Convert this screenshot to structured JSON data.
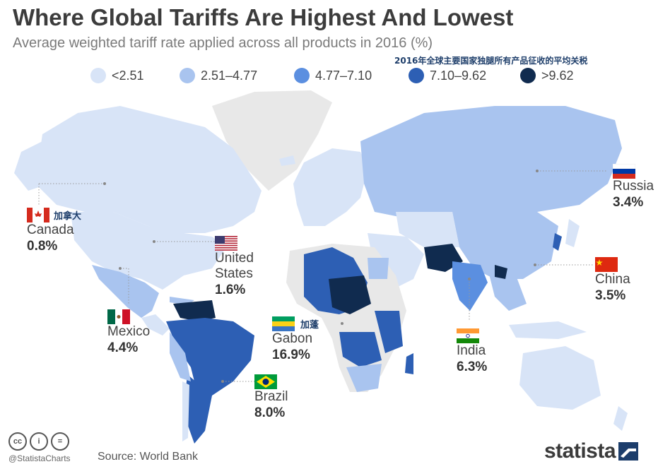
{
  "title": "Where Global Tariffs Are Highest And Lowest",
  "subtitle": "Average weighted tariff rate applied across all products in 2016 (%)",
  "cn_subtitle": "2016年全球主要国家独腿所有产品征收的平均关税",
  "legend": [
    {
      "label": "<2.51",
      "color": "#d8e4f7"
    },
    {
      "label": "2.51–4.77",
      "color": "#a9c4ef"
    },
    {
      "label": "4.77–7.10",
      "color": "#5b8fe0"
    },
    {
      "label": "7.10–9.62",
      "color": "#2d5fb4"
    },
    {
      "label": ">9.62",
      "color": "#102b4f"
    }
  ],
  "no_data_color": "#e8e8e8",
  "callouts": {
    "canada": {
      "name": "Canada",
      "value": "0.8%",
      "cn": "加拿大"
    },
    "united_states": {
      "name_line1": "United",
      "name_line2": "States",
      "value": "1.6%"
    },
    "mexico": {
      "name": "Mexico",
      "value": "4.4%"
    },
    "gabon": {
      "name": "Gabon",
      "value": "16.9%",
      "cn": "加蓬"
    },
    "brazil": {
      "name": "Brazil",
      "value": "8.0%"
    },
    "india": {
      "name": "India",
      "value": "6.3%"
    },
    "china": {
      "name": "China",
      "value": "3.5%"
    },
    "russia": {
      "name": "Russia",
      "value": "3.4%"
    }
  },
  "footer": {
    "credit": "@StatistaCharts",
    "source": "Source: World Bank",
    "brand": "statista",
    "cc_icons": [
      "cc",
      "i",
      "="
    ]
  }
}
